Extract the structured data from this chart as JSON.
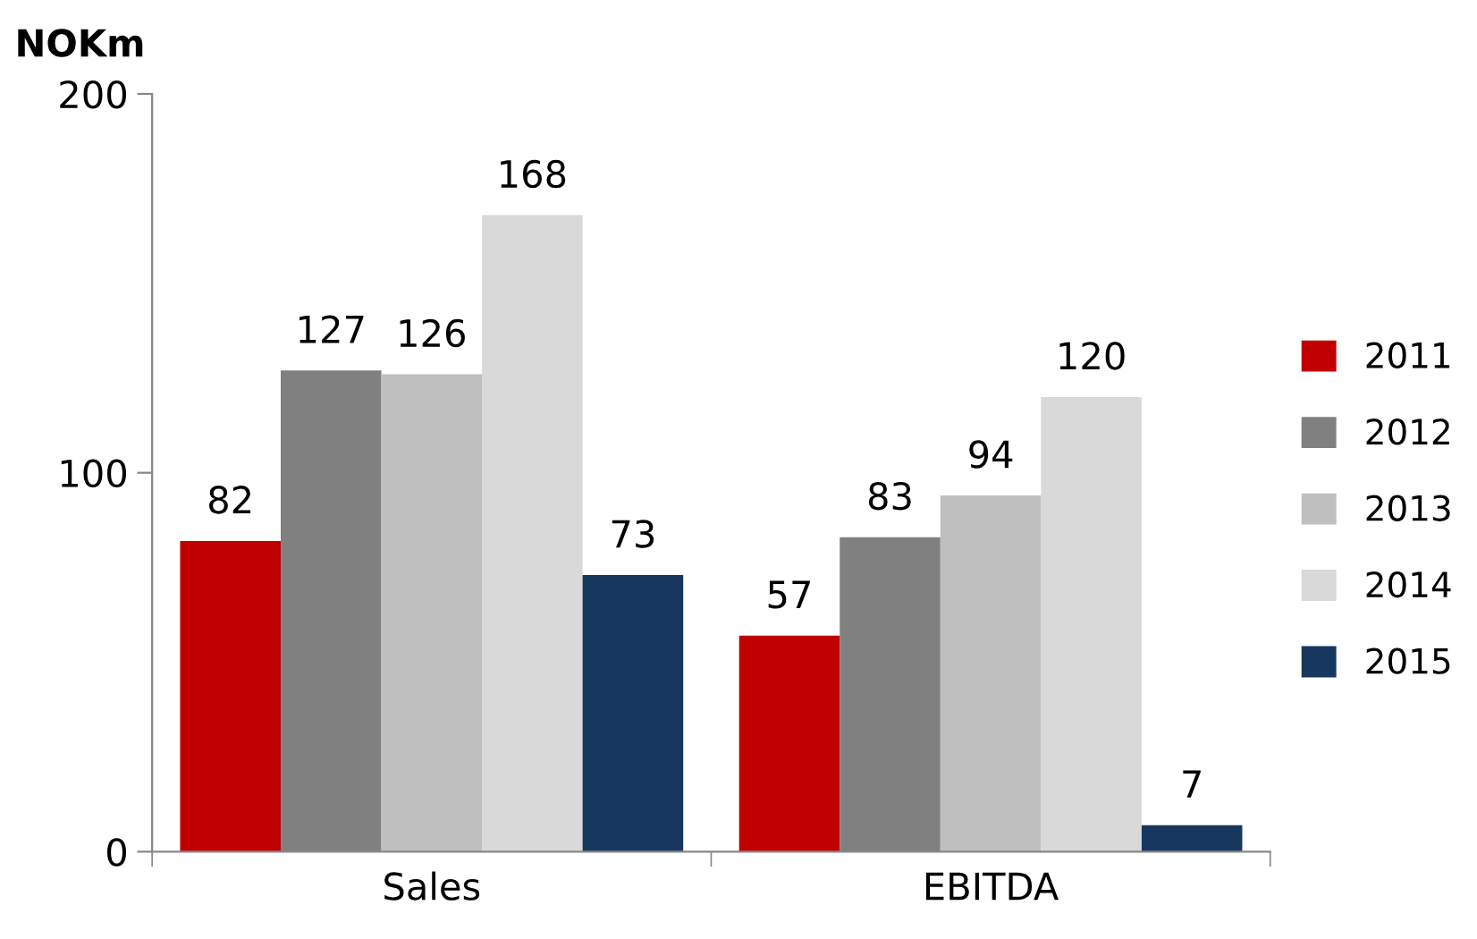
{
  "chart_data": {
    "type": "bar",
    "ylabel": "NOKm",
    "categories": [
      "Sales",
      "EBITDA"
    ],
    "series": [
      {
        "name": "2011",
        "color": "#c00000",
        "values": [
          82,
          57
        ]
      },
      {
        "name": "2012",
        "color": "#808080",
        "values": [
          127,
          83
        ]
      },
      {
        "name": "2013",
        "color": "#bfbfbf",
        "values": [
          126,
          94
        ]
      },
      {
        "name": "2014",
        "color": "#d9d9d9",
        "values": [
          168,
          120
        ]
      },
      {
        "name": "2015",
        "color": "#17375e",
        "values": [
          73,
          7
        ]
      }
    ],
    "ylim": [
      0,
      200
    ],
    "yticks": [
      0,
      100,
      200
    ],
    "grid": false,
    "legend": "right",
    "data_labels": true
  }
}
